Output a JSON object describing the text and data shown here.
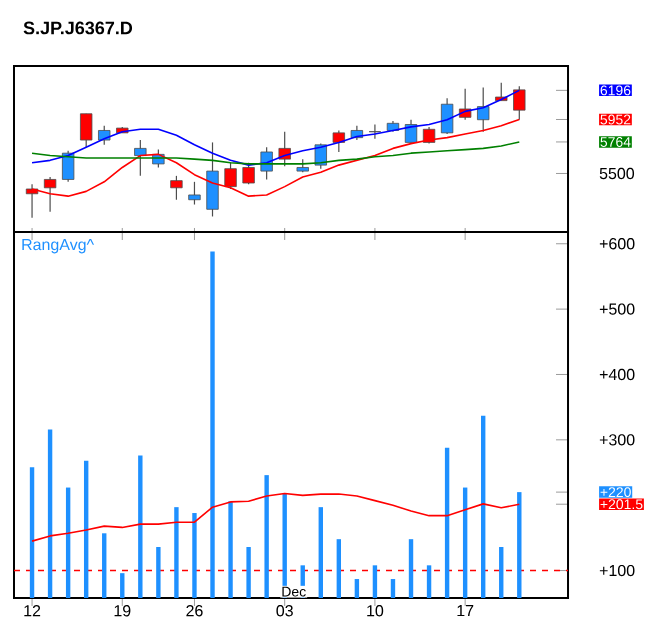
{
  "chart_data": [
    {
      "type": "candlestick",
      "title": "S.JP.J6367.D",
      "tick_labels": "y",
      "categories": [
        "12",
        null,
        null,
        null,
        null,
        "19",
        null,
        null,
        null,
        "26",
        null,
        null,
        null,
        null,
        "03",
        null,
        null,
        null,
        null,
        "10",
        null,
        null,
        null,
        null,
        "17",
        null,
        null,
        null
      ],
      "ohlc": [
        [
          5370,
          5410,
          5130,
          5330
        ],
        [
          5450,
          5470,
          5180,
          5380
        ],
        [
          5450,
          5690,
          5430,
          5670
        ],
        [
          6000,
          6000,
          5720,
          5780
        ],
        [
          5780,
          5900,
          5740,
          5860
        ],
        [
          5880,
          5890,
          5840,
          5840
        ],
        [
          5650,
          5780,
          5480,
          5710
        ],
        [
          5580,
          5700,
          5550,
          5660
        ],
        [
          5440,
          5480,
          5280,
          5380
        ],
        [
          5280,
          5430,
          5240,
          5320
        ],
        [
          5200,
          5760,
          5140,
          5520
        ],
        [
          5540,
          5590,
          5370,
          5390
        ],
        [
          5550,
          5590,
          5410,
          5420
        ],
        [
          5520,
          5720,
          5450,
          5680
        ],
        [
          5710,
          5850,
          5560,
          5620
        ],
        [
          5520,
          5620,
          5510,
          5550
        ],
        [
          5570,
          5750,
          5540,
          5740
        ],
        [
          5840,
          5860,
          5680,
          5760
        ],
        [
          5800,
          5900,
          5780,
          5860
        ],
        [
          5850,
          5910,
          5790,
          5850
        ],
        [
          5860,
          5940,
          5850,
          5920
        ],
        [
          5760,
          5950,
          5760,
          5910
        ],
        [
          5870,
          5890,
          5750,
          5760
        ],
        [
          5840,
          6130,
          5830,
          6080
        ],
        [
          6040,
          6210,
          5950,
          5970
        ],
        [
          5950,
          6220,
          5850,
          6060
        ],
        [
          6140,
          6260,
          6110,
          6110
        ],
        [
          6200,
          6230,
          5950,
          6030
        ]
      ],
      "colors": [
        "#ff0000",
        "#ff0000",
        "#1e90ff",
        "#ff0000",
        "#1e90ff",
        "#ff0000",
        "#1e90ff",
        "#1e90ff",
        "#ff0000",
        "#1e90ff",
        "#1e90ff",
        "#ff0000",
        "#ff0000",
        "#1e90ff",
        "#ff0000",
        "#1e90ff",
        "#1e90ff",
        "#ff0000",
        "#1e90ff",
        "#4c4c4c",
        "#1e90ff",
        "#1e90ff",
        "#ff0000",
        "#1e90ff",
        "#ff0000",
        "#1e90ff",
        "#ff0000",
        "#ff0000"
      ],
      "series": [
        {
          "type": "line",
          "color": "#0000ff",
          "values": [
            5590,
            5610,
            5650,
            5720,
            5790,
            5850,
            5870,
            5870,
            5820,
            5740,
            5670,
            5610,
            5570,
            5590,
            5650,
            5690,
            5720,
            5760,
            5810,
            5830,
            5860,
            5890,
            5910,
            5950,
            6020,
            6050,
            6120,
            6196
          ]
        },
        {
          "type": "line",
          "color": "#ff0000",
          "values": [
            5370,
            5330,
            5310,
            5350,
            5430,
            5550,
            5650,
            5660,
            5590,
            5490,
            5420,
            5380,
            5310,
            5320,
            5390,
            5470,
            5510,
            5570,
            5610,
            5650,
            5710,
            5750,
            5780,
            5800,
            5830,
            5860,
            5900,
            5952
          ]
        },
        {
          "type": "line",
          "color": "#008000",
          "values": [
            5670,
            5650,
            5640,
            5630,
            5630,
            5630,
            5630,
            5630,
            5630,
            5620,
            5610,
            5590,
            5580,
            5580,
            5580,
            5580,
            5590,
            5610,
            5620,
            5640,
            5650,
            5670,
            5680,
            5690,
            5700,
            5710,
            5730,
            5764
          ]
        }
      ],
      "ylim": [
        5010,
        6400
      ],
      "yticks": [
        5500,
        5764,
        5952,
        6196
      ]
    },
    {
      "type": "bar",
      "title": "RangAvg^",
      "categories": [
        "12",
        null,
        null,
        null,
        null,
        "19",
        null,
        null,
        null,
        "26",
        null,
        null,
        null,
        null,
        "03",
        null,
        null,
        null,
        null,
        "10",
        null,
        null,
        null,
        null,
        "17",
        null,
        null,
        null
      ],
      "series": [
        {
          "type": "bar",
          "color": "#1e90ff",
          "values": [
            258,
            316,
            227,
            268,
            157,
            96,
            276,
            136,
            197,
            188,
            588,
            206,
            136,
            246,
            218,
            108,
            197,
            148,
            87,
            108,
            87,
            148,
            108,
            288,
            227,
            337,
            136,
            220
          ]
        },
        {
          "type": "line",
          "color": "#ff0000",
          "values": [
            145,
            153,
            157,
            162,
            168,
            166,
            171,
            171,
            174,
            174,
            197,
            205,
            206,
            214,
            218,
            215,
            217,
            217,
            214,
            207,
            200,
            191,
            184,
            184,
            193,
            202,
            196,
            201.5
          ]
        }
      ],
      "ylim": [
        58,
        618
      ],
      "yticks": [
        {
          "value": 100,
          "label": "+100"
        },
        {
          "value": 201.5,
          "label": "+201.5"
        },
        {
          "value": 220,
          "label": "+220"
        },
        {
          "value": 300,
          "label": "+300"
        },
        {
          "value": 400,
          "label": "+400"
        },
        {
          "value": 500,
          "label": "+500"
        },
        {
          "value": 600,
          "label": "+600"
        }
      ],
      "ref_lines": [
        {
          "axis": "y",
          "value": 100,
          "color": "#ff0000",
          "line_style": "dashed"
        }
      ],
      "annotations": [
        "Dec"
      ]
    }
  ]
}
